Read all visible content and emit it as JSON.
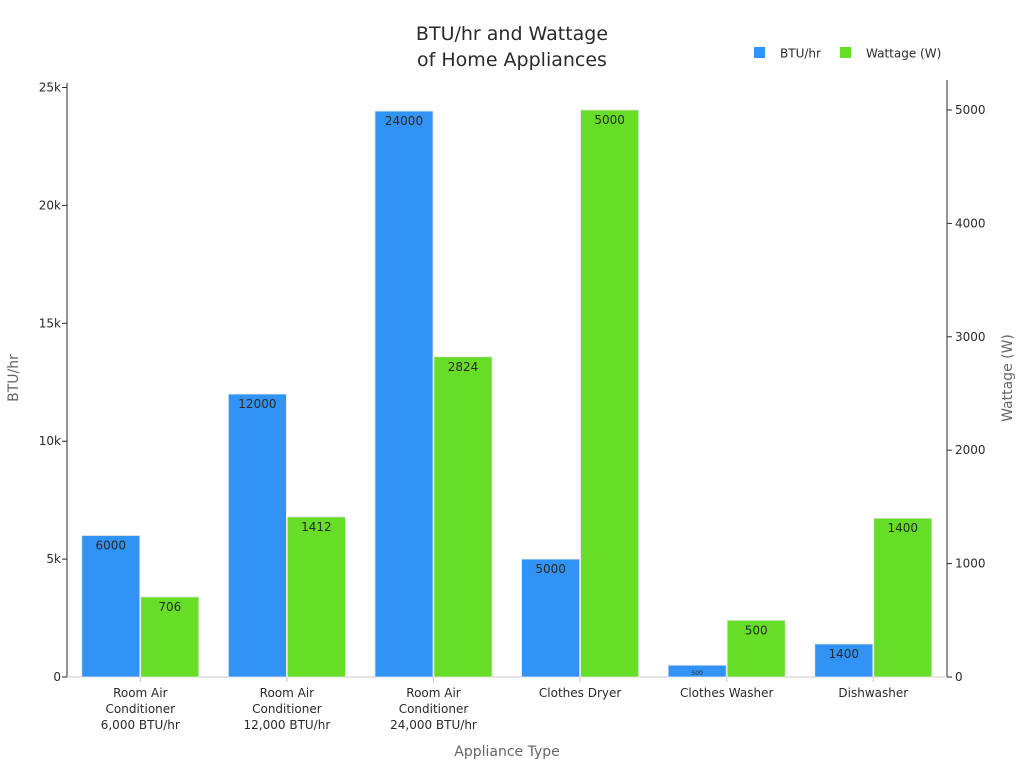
{
  "chart_data": {
    "type": "bar",
    "title_lines": [
      "BTU/hr and Wattage",
      "of Home Appliances"
    ],
    "xlabel": "Appliance Type",
    "ylabel": "BTU/hr",
    "y2label": "Wattage (W)",
    "categories": [
      [
        "Room Air",
        "Conditioner",
        "6,000 BTU/hr"
      ],
      [
        "Room Air",
        "Conditioner",
        "12,000 BTU/hr"
      ],
      [
        "Room Air",
        "Conditioner",
        "24,000 BTU/hr"
      ],
      [
        "Clothes Dryer"
      ],
      [
        "Clothes Washer"
      ],
      [
        "Dishwasher"
      ]
    ],
    "series": [
      {
        "name": "BTU/hr",
        "axis": "left",
        "color": "#3193f5",
        "values": [
          6000,
          12000,
          24000,
          5000,
          500,
          1400
        ],
        "labels": [
          "6000",
          "12000",
          "24000",
          "5000",
          "500",
          "1400"
        ]
      },
      {
        "name": "Wattage (W)",
        "axis": "right",
        "color": "#66dd27",
        "values": [
          706,
          1412,
          2824,
          5000,
          500,
          1400
        ],
        "labels": [
          "706",
          "1412",
          "2824",
          "5000",
          "500",
          "1400"
        ]
      }
    ],
    "y_left": {
      "lim": [
        0,
        25000
      ],
      "ticks": [
        0,
        5000,
        10000,
        15000,
        20000,
        25000
      ],
      "tick_labels": [
        "0",
        "5k",
        "10k",
        "15k",
        "20k",
        "25k"
      ]
    },
    "y_right": {
      "lim": [
        0,
        5200
      ],
      "ticks": [
        0,
        1000,
        2000,
        3000,
        4000,
        5000
      ],
      "tick_labels": [
        "0",
        "1000",
        "2000",
        "3000",
        "4000",
        "5000"
      ]
    },
    "legend_position": "top-right",
    "grid": false
  }
}
